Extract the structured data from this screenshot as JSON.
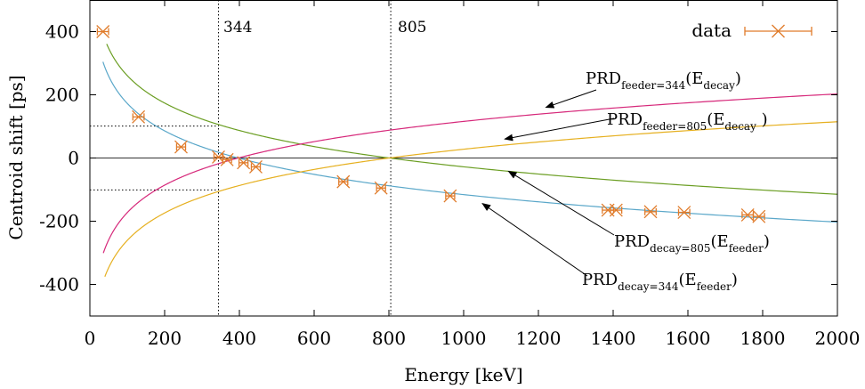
{
  "chart_data": {
    "type": "line",
    "xlabel": "Energy [keV]",
    "ylabel": "Centroid shift [ps]",
    "xlim": [
      0,
      2000
    ],
    "ylim": [
      -500,
      500
    ],
    "xticks": [
      0,
      200,
      400,
      600,
      800,
      1000,
      1200,
      1400,
      1600,
      1800,
      2000
    ],
    "yticks": [
      -400,
      -200,
      0,
      200,
      400
    ],
    "grid": false,
    "legend": {
      "position": "top-right",
      "entries": [
        "data"
      ]
    },
    "reference_lines": {
      "vertical": [
        {
          "x": 344,
          "label": "344"
        },
        {
          "x": 805,
          "label": "805"
        }
      ],
      "horizontal_dotted": [
        {
          "y": 101,
          "x_to": 344
        },
        {
          "y": -101,
          "x_to": 344
        }
      ],
      "zero_line": 0
    },
    "series": [
      {
        "name": "data",
        "kind": "points",
        "color": "#e07b2a",
        "points": [
          {
            "x": 35,
            "y": 400,
            "xerr": 15
          },
          {
            "x": 130,
            "y": 130,
            "xerr": 15
          },
          {
            "x": 244,
            "y": 35,
            "xerr": 12
          },
          {
            "x": 344,
            "y": 3,
            "xerr": 12
          },
          {
            "x": 367,
            "y": -5,
            "xerr": 12
          },
          {
            "x": 411,
            "y": -15,
            "xerr": 12
          },
          {
            "x": 444,
            "y": -28,
            "xerr": 12
          },
          {
            "x": 678,
            "y": -75,
            "xerr": 12
          },
          {
            "x": 779,
            "y": -95,
            "xerr": 12
          },
          {
            "x": 964,
            "y": -120,
            "xerr": 12
          },
          {
            "x": 1386,
            "y": -165,
            "xerr": 15
          },
          {
            "x": 1408,
            "y": -165,
            "xerr": 15
          },
          {
            "x": 1500,
            "y": -170,
            "xerr": 15
          },
          {
            "x": 1590,
            "y": -172,
            "xerr": 15
          },
          {
            "x": 1760,
            "y": -180,
            "xerr": 15
          },
          {
            "x": 1790,
            "y": -185,
            "xerr": 15
          }
        ]
      },
      {
        "kind": "curve",
        "color": "#5aa7c9",
        "formula": "A - B*ln(E)",
        "A": 750,
        "B": 125.34,
        "x_range": [
          35,
          2000
        ]
      },
      {
        "kind": "curve",
        "color": "#6b9e23",
        "formula": "A - B*ln(E)",
        "A": 838,
        "B": 125.34,
        "x_range": [
          45,
          2000
        ]
      },
      {
        "kind": "curve",
        "color": "#d6287a",
        "formula": "-A + B*ln(E)",
        "A": 750,
        "B": 125.34,
        "x_range": [
          36,
          2000
        ]
      },
      {
        "kind": "curve",
        "color": "#e6b020",
        "formula": "-A + B*ln(E)",
        "A": 838,
        "B": 125.34,
        "x_range": [
          40,
          2000
        ]
      }
    ],
    "annotations": [
      {
        "id": "feeder344",
        "main": "PRD",
        "sub": "feeder=344",
        "arg": "(E",
        "argsub": "decay",
        "close": ")",
        "arrow_to": [
          1220,
          160
        ]
      },
      {
        "id": "feeder805",
        "main": "PRD",
        "sub": "feeder=805",
        "arg": "(E",
        "argsub": "decay",
        "close": " )",
        "arrow_to": [
          1110,
          60
        ]
      },
      {
        "id": "decay805",
        "main": "PRD",
        "sub": "decay=805",
        "arg": "(E",
        "argsub": "feeder",
        "close": ")",
        "arrow_to": [
          1120,
          -42
        ]
      },
      {
        "id": "decay344",
        "main": "PRD",
        "sub": "decay=344",
        "arg": "(E",
        "argsub": "feeder",
        "close": ")",
        "arrow_to": [
          1050,
          -144
        ]
      }
    ]
  }
}
